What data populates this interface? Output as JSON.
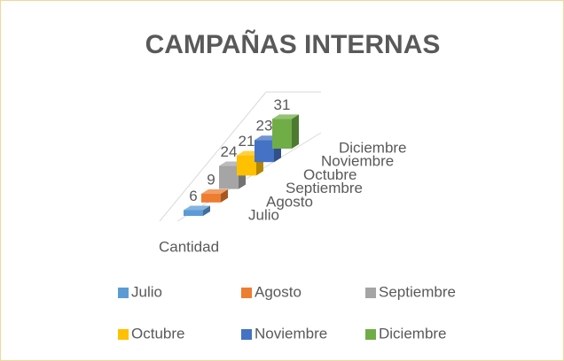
{
  "chart_data": {
    "type": "bar3d",
    "title": "CAMPAÑAS INTERNAS",
    "categories": [
      "Cantidad"
    ],
    "series": [
      {
        "name": "Julio",
        "color": "#5b9bd5",
        "values": [
          6
        ]
      },
      {
        "name": "Agosto",
        "color": "#ed7d31",
        "values": [
          9
        ]
      },
      {
        "name": "Septiembre",
        "color": "#a5a5a5",
        "values": [
          24
        ]
      },
      {
        "name": "Octubre",
        "color": "#ffc000",
        "values": [
          21
        ]
      },
      {
        "name": "Noviembre",
        "color": "#4472c4",
        "values": [
          23
        ]
      },
      {
        "name": "Diciembre",
        "color": "#70ad47",
        "values": [
          31
        ]
      }
    ],
    "ylim": [
      0,
      35
    ],
    "legend": "bottom"
  }
}
